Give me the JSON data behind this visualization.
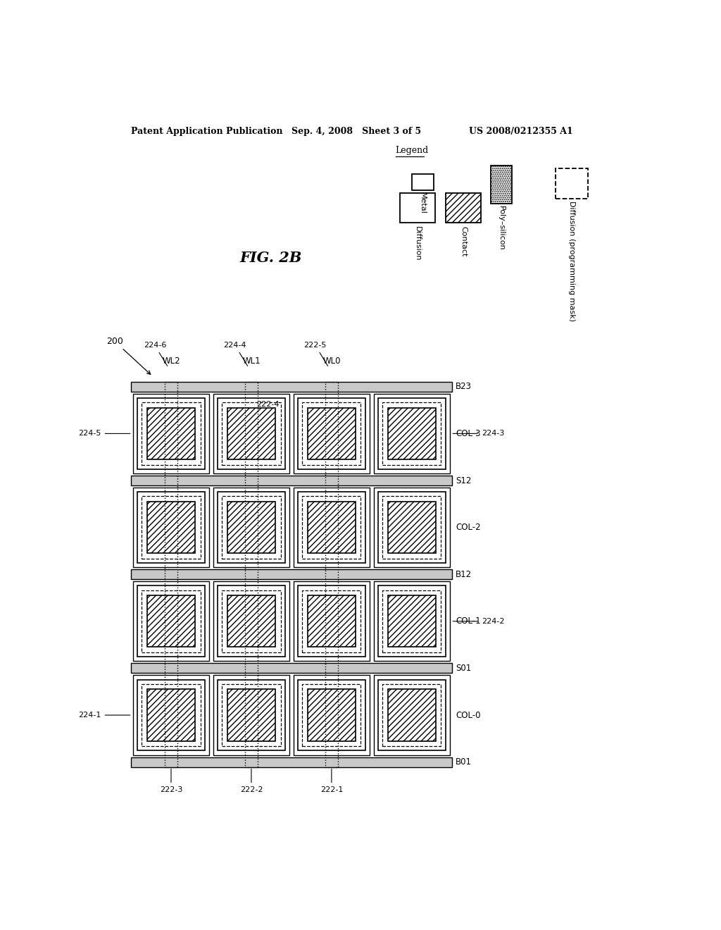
{
  "title_left": "Patent Application Publication",
  "title_mid": "Sep. 4, 2008   Sheet 3 of 5",
  "title_right": "US 2008/0212355 A1",
  "fig_label": "FIG. 2B",
  "background": "#ffffff",
  "grid_rows": 4,
  "grid_cols": 4,
  "row_labels_right": [
    "COL-3",
    "COL-2",
    "COL-1",
    "COL-0"
  ],
  "bus_labels": [
    "B23",
    "S12",
    "B12",
    "S01",
    "B01"
  ],
  "wl_labels": [
    "WL2",
    "WL1",
    "WL0"
  ],
  "wl_top_annots": [
    "224-6",
    "224-4",
    "222-5"
  ],
  "wl_bot_annots": [
    "222-3",
    "222-2",
    "222-1"
  ],
  "left_row_annots": {
    "3": "224-5",
    "0": "224-1"
  },
  "right_row_annots": {
    "3": "224-3",
    "1": "224-2"
  },
  "mid_annot": "222-4",
  "diagram_annot": "200"
}
